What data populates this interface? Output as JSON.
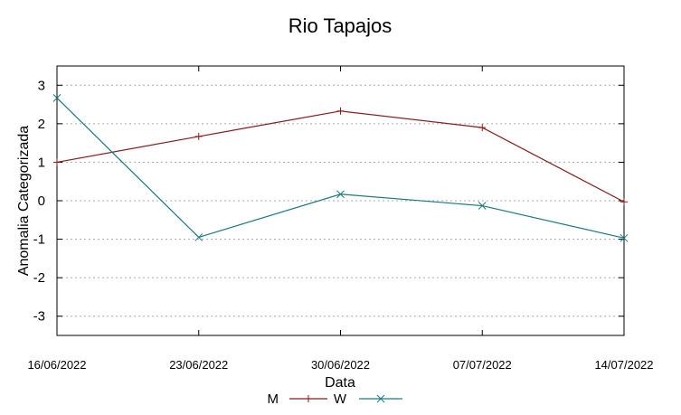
{
  "chart_data": {
    "type": "line",
    "title": "Rio Tapajos",
    "xlabel": "Data",
    "ylabel": "Anomalia Categorizada",
    "categories": [
      "16/06/2022",
      "23/06/2022",
      "30/06/2022",
      "07/07/2022",
      "14/07/2022"
    ],
    "yticks": [
      "3",
      "2",
      "1",
      "0",
      "-1",
      "-2",
      "-3"
    ],
    "ylim": [
      -3.5,
      3.5
    ],
    "grid": "horizontal dotted",
    "legend_position": "bottom-center",
    "series": [
      {
        "name": "M",
        "color": "#8b1a1a",
        "marker": "plus",
        "values": [
          1.0,
          1.67,
          2.33,
          1.9,
          -0.03
        ]
      },
      {
        "name": "W",
        "color": "#1a7a80",
        "marker": "x",
        "values": [
          2.67,
          -0.95,
          0.17,
          -0.13,
          -0.97
        ]
      }
    ]
  }
}
